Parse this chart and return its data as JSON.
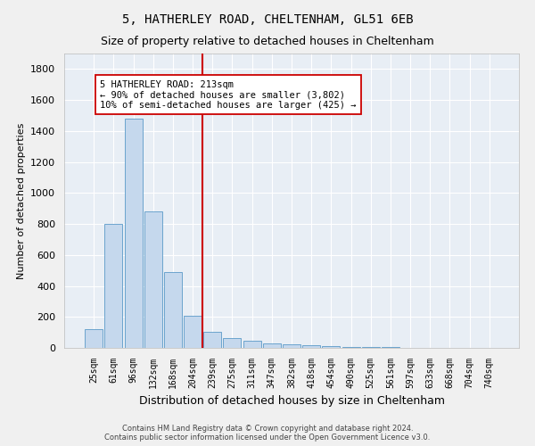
{
  "title1": "5, HATHERLEY ROAD, CHELTENHAM, GL51 6EB",
  "title2": "Size of property relative to detached houses in Cheltenham",
  "xlabel": "Distribution of detached houses by size in Cheltenham",
  "ylabel": "Number of detached properties",
  "categories": [
    "25sqm",
    "61sqm",
    "96sqm",
    "132sqm",
    "168sqm",
    "204sqm",
    "239sqm",
    "275sqm",
    "311sqm",
    "347sqm",
    "382sqm",
    "418sqm",
    "454sqm",
    "490sqm",
    "525sqm",
    "561sqm",
    "597sqm",
    "633sqm",
    "668sqm",
    "704sqm",
    "740sqm"
  ],
  "values": [
    120,
    800,
    1480,
    880,
    490,
    210,
    105,
    65,
    45,
    30,
    25,
    20,
    10,
    8,
    5,
    3,
    2,
    2,
    1,
    1,
    1
  ],
  "bar_color": "#c5d8ed",
  "bar_edge_color": "#5a9ac8",
  "vline_x": 5.5,
  "vline_color": "#cc0000",
  "annotation_text": "5 HATHERLEY ROAD: 213sqm\n← 90% of detached houses are smaller (3,802)\n10% of semi-detached houses are larger (425) →",
  "annotation_box_color": "#ffffff",
  "annotation_box_edge": "#cc0000",
  "ylim": [
    0,
    1900
  ],
  "yticks": [
    0,
    200,
    400,
    600,
    800,
    1000,
    1200,
    1400,
    1600,
    1800
  ],
  "footer1": "Contains HM Land Registry data © Crown copyright and database right 2024.",
  "footer2": "Contains public sector information licensed under the Open Government Licence v3.0.",
  "plot_bg_color": "#e8eef5",
  "fig_bg_color": "#f0f0f0",
  "grid_color": "#ffffff",
  "title1_fontsize": 10,
  "title2_fontsize": 9,
  "ann_fontsize": 7.5,
  "ylabel_fontsize": 8,
  "xlabel_fontsize": 9
}
